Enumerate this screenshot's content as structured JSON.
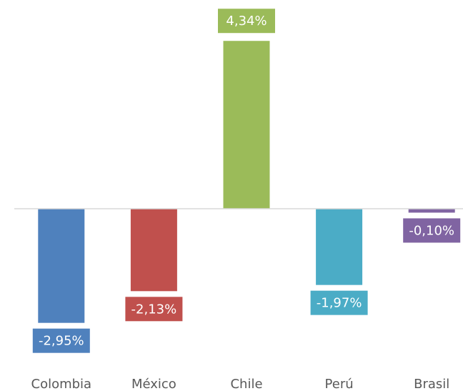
{
  "chart_data": {
    "type": "bar",
    "categories": [
      "Colombia",
      "México",
      "Chile",
      "Perú",
      "Brasil"
    ],
    "values": [
      -2.95,
      -2.13,
      4.34,
      -1.97,
      -0.1
    ],
    "value_labels": [
      "-2,95%",
      "-2,13%",
      "4,34%",
      "-1,97%",
      "-0,10%"
    ],
    "colors": [
      "#4f81bd",
      "#c0504d",
      "#9bbb59",
      "#4bacc6",
      "#8064a2"
    ],
    "ylim": [
      -4,
      5
    ],
    "grid": false
  }
}
